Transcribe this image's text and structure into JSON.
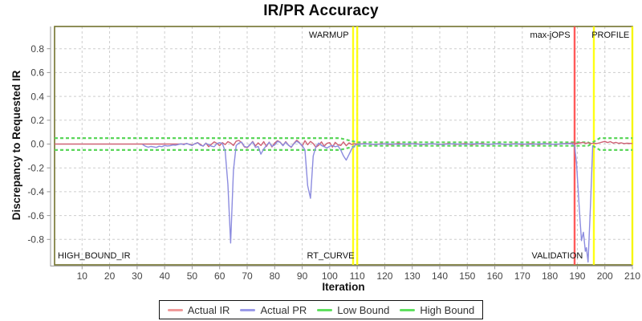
{
  "chart_data": {
    "type": "line",
    "title": "IR/PR Accuracy",
    "xlabel": "Iteration",
    "ylabel": "Discrepancy to Requested IR",
    "x_min": 0,
    "x_max": 210,
    "ylim": [
      -1,
      1
    ],
    "grid": true,
    "legend_position": "bottom",
    "x_ticks": [
      10,
      20,
      30,
      40,
      50,
      60,
      70,
      80,
      90,
      100,
      110,
      120,
      130,
      140,
      150,
      160,
      170,
      180,
      190,
      200,
      210
    ],
    "x_tick_labels": [
      "10",
      "20",
      "30",
      "40",
      "50",
      "60",
      "70",
      "80",
      "90",
      "100",
      "110",
      "120",
      "130",
      "140",
      "150",
      "160",
      "170",
      "180",
      "190",
      "200",
      "210"
    ],
    "y_ticks": [
      0.8,
      0.6,
      0.4,
      0.2,
      0.0,
      -0.2,
      -0.4,
      -0.6,
      -0.8
    ],
    "y_tick_labels": [
      "0.8",
      "0.6",
      "0.4",
      "0.2",
      "0.0",
      "-0.2",
      "-0.4",
      "-0.6",
      "-0.8"
    ],
    "phase_markers": [
      {
        "x": 108.5,
        "color": "#ffff00",
        "phase": "end-of-warmup"
      },
      {
        "x": 110,
        "color": "#ffff00",
        "phase": "start-of-rt-curve"
      },
      {
        "x": 189,
        "color": "#ff4d4d",
        "phase": "max-jOPS"
      },
      {
        "x": 196,
        "color": "#ffff00",
        "phase": "end-of-validation"
      },
      {
        "x": 210,
        "color": "#ffff00",
        "phase": "end-of-profile"
      }
    ],
    "annotations": [
      {
        "text": "WARMUP",
        "x": 107.5,
        "valign": "top",
        "align": "end"
      },
      {
        "text": "max-jOPS",
        "x": 188,
        "valign": "top",
        "align": "end"
      },
      {
        "text": "PROFILE",
        "x": 209.5,
        "valign": "top",
        "align": "end"
      },
      {
        "text": "HIGH_BOUND_IR",
        "x": 0.6,
        "valign": "bottom",
        "align": "start"
      },
      {
        "text": "RT_CURVE",
        "x": 109.5,
        "valign": "bottom",
        "align": "end"
      },
      {
        "text": "VALIDATION",
        "x": 192.6,
        "valign": "bottom",
        "align": "end"
      }
    ],
    "series": [
      {
        "name": "Actual IR",
        "color": "#cf6275",
        "width": 1.4,
        "dash": null,
        "points": [
          [
            0,
            0
          ],
          [
            47,
            0
          ],
          [
            48,
            0.004
          ],
          [
            50,
            -0.008
          ],
          [
            52,
            0.012
          ],
          [
            54,
            -0.018
          ],
          [
            55,
            0.008
          ],
          [
            56,
            -0.022
          ],
          [
            58,
            0.018
          ],
          [
            59,
            0.006
          ],
          [
            60,
            -0.014
          ],
          [
            61,
            0.012
          ],
          [
            62,
            -0.005
          ],
          [
            63,
            0.02
          ],
          [
            64,
            0.008
          ],
          [
            65,
            -0.012
          ],
          [
            66,
            0.024
          ],
          [
            67,
            0.03
          ],
          [
            68,
            0.012
          ],
          [
            69,
            -0.024
          ],
          [
            70,
            -0.03
          ],
          [
            71,
            -0.008
          ],
          [
            72,
            0.022
          ],
          [
            73,
            -0.016
          ],
          [
            74,
            0.01
          ],
          [
            75,
            -0.012
          ],
          [
            76,
            0.02
          ],
          [
            77,
            -0.02
          ],
          [
            78,
            0.016
          ],
          [
            79,
            -0.024
          ],
          [
            80,
            0.008
          ],
          [
            81,
            0.028
          ],
          [
            82,
            0.016
          ],
          [
            83,
            -0.012
          ],
          [
            84,
            0.02
          ],
          [
            85,
            -0.008
          ],
          [
            86,
            -0.028
          ],
          [
            87,
            0.006
          ],
          [
            88,
            0.032
          ],
          [
            89,
            0.012
          ],
          [
            90,
            -0.018
          ],
          [
            91,
            0.028
          ],
          [
            92,
            -0.006
          ],
          [
            93,
            0.022
          ],
          [
            94,
            0.004
          ],
          [
            95,
            -0.026
          ],
          [
            96,
            -0.01
          ],
          [
            97,
            0.018
          ],
          [
            98,
            -0.018
          ],
          [
            99,
            0.006
          ],
          [
            100,
            0.012
          ],
          [
            101,
            -0.026
          ],
          [
            102,
            0.014
          ],
          [
            103,
            -0.006
          ],
          [
            104,
            -0.012
          ],
          [
            105,
            0.018
          ],
          [
            106,
            -0.014
          ],
          [
            107,
            0.01
          ],
          [
            108,
            -0.004
          ],
          [
            109,
            0.004
          ],
          [
            110,
            0.001
          ],
          [
            113,
            0.004
          ],
          [
            116,
            -0.004
          ],
          [
            119,
            0.003
          ],
          [
            122,
            -0.004
          ],
          [
            125,
            0.005
          ],
          [
            128,
            -0.003
          ],
          [
            131,
            0.004
          ],
          [
            134,
            -0.004
          ],
          [
            137,
            0.003
          ],
          [
            140,
            -0.004
          ],
          [
            143,
            0.004
          ],
          [
            146,
            -0.003
          ],
          [
            149,
            0.004
          ],
          [
            152,
            -0.004
          ],
          [
            155,
            0.005
          ],
          [
            158,
            -0.003
          ],
          [
            161,
            0.004
          ],
          [
            164,
            -0.004
          ],
          [
            167,
            0.003
          ],
          [
            170,
            -0.004
          ],
          [
            173,
            0.004
          ],
          [
            176,
            -0.003
          ],
          [
            179,
            0.004
          ],
          [
            182,
            -0.004
          ],
          [
            185,
            0.004
          ],
          [
            187,
            0.006
          ],
          [
            189,
            0.01
          ],
          [
            190,
            0.004
          ],
          [
            191,
            0.01
          ],
          [
            192,
            0.014
          ],
          [
            193,
            0.006
          ],
          [
            194,
            0.01
          ],
          [
            195,
            0.004
          ],
          [
            196,
            0.008
          ],
          [
            197,
            0.004
          ],
          [
            198,
            0.01
          ],
          [
            199,
            0.016
          ],
          [
            200,
            0.022
          ],
          [
            201,
            0.012
          ],
          [
            202,
            0.02
          ],
          [
            203,
            0.008
          ],
          [
            204,
            0.014
          ],
          [
            205,
            0.006
          ],
          [
            206,
            0.01
          ],
          [
            207,
            0.004
          ],
          [
            208,
            0.007
          ],
          [
            210,
            0.005
          ]
        ]
      },
      {
        "name": "Actual PR",
        "color": "#8c8cdf",
        "width": 1.4,
        "dash": null,
        "points": [
          [
            32,
            -0.004
          ],
          [
            33,
            -0.018
          ],
          [
            34,
            -0.026
          ],
          [
            35,
            -0.02
          ],
          [
            36,
            -0.024
          ],
          [
            37,
            -0.028
          ],
          [
            38,
            -0.018
          ],
          [
            39,
            -0.022
          ],
          [
            40,
            -0.012
          ],
          [
            41,
            -0.016
          ],
          [
            42,
            -0.014
          ],
          [
            43,
            -0.008
          ],
          [
            44,
            -0.01
          ],
          [
            45,
            -0.004
          ],
          [
            46,
            0.002
          ],
          [
            47,
            -0.006
          ],
          [
            48,
            0.006
          ],
          [
            49,
            -0.004
          ],
          [
            50,
            -0.012
          ],
          [
            51,
            0.004
          ],
          [
            52,
            0.01
          ],
          [
            53,
            -0.01
          ],
          [
            54,
            -0.016
          ],
          [
            55,
            0.006
          ],
          [
            56,
            -0.004
          ],
          [
            57,
            -0.018
          ],
          [
            58,
            -0.022
          ],
          [
            59,
            0.004
          ],
          [
            60,
            0.012
          ],
          [
            61,
            0.004
          ],
          [
            62,
            -0.06
          ],
          [
            63,
            -0.34
          ],
          [
            64,
            -0.83
          ],
          [
            65,
            -0.22
          ],
          [
            66,
            -0.012
          ],
          [
            67,
            0.008
          ],
          [
            68,
            0.016
          ],
          [
            69,
            -0.02
          ],
          [
            70,
            -0.026
          ],
          [
            71,
            -0.006
          ],
          [
            72,
            0.018
          ],
          [
            73,
            -0.028
          ],
          [
            74,
            -0.02
          ],
          [
            75,
            -0.085
          ],
          [
            76,
            -0.042
          ],
          [
            77,
            -0.012
          ],
          [
            78,
            0.014
          ],
          [
            79,
            -0.018
          ],
          [
            80,
            -0.008
          ],
          [
            81,
            0.022
          ],
          [
            82,
            0.014
          ],
          [
            83,
            -0.014
          ],
          [
            84,
            0.016
          ],
          [
            85,
            -0.01
          ],
          [
            86,
            -0.024
          ],
          [
            87,
            0.002
          ],
          [
            88,
            0.024
          ],
          [
            89,
            0.008
          ],
          [
            90,
            -0.012
          ],
          [
            91,
            -0.05
          ],
          [
            92,
            -0.35
          ],
          [
            93,
            -0.455
          ],
          [
            94,
            -0.1
          ],
          [
            95,
            -0.022
          ],
          [
            96,
            0.008
          ],
          [
            97,
            -0.012
          ],
          [
            98,
            -0.022
          ],
          [
            99,
            -0.034
          ],
          [
            100,
            -0.018
          ],
          [
            101,
            -0.012
          ],
          [
            102,
            -0.022
          ],
          [
            103,
            -0.016
          ],
          [
            104,
            -0.05
          ],
          [
            105,
            -0.1
          ],
          [
            106,
            -0.135
          ],
          [
            107,
            -0.088
          ],
          [
            108,
            -0.04
          ],
          [
            109,
            -0.012
          ],
          [
            110,
            -0.003
          ],
          [
            113,
            0.002
          ],
          [
            117,
            -0.003
          ],
          [
            121,
            0.002
          ],
          [
            125,
            -0.002
          ],
          [
            129,
            0.003
          ],
          [
            133,
            -0.002
          ],
          [
            137,
            0.002
          ],
          [
            141,
            -0.003
          ],
          [
            145,
            0.002
          ],
          [
            149,
            -0.002
          ],
          [
            153,
            0.003
          ],
          [
            157,
            -0.002
          ],
          [
            161,
            0.002
          ],
          [
            165,
            -0.003
          ],
          [
            169,
            0.002
          ],
          [
            173,
            -0.002
          ],
          [
            177,
            0.003
          ],
          [
            181,
            -0.002
          ],
          [
            185,
            0.002
          ],
          [
            188,
            0.004
          ],
          [
            189,
            -0.012
          ],
          [
            189.7,
            -0.16
          ],
          [
            190.9,
            -0.61
          ],
          [
            191.5,
            -0.81
          ],
          [
            192.2,
            -0.74
          ],
          [
            192.9,
            -0.9
          ],
          [
            193.3,
            -0.87
          ],
          [
            193.9,
            -0.99
          ],
          [
            194.9,
            -0.45
          ],
          [
            195.6,
            -0.01
          ]
        ]
      },
      {
        "name": "Low Bound",
        "color": "#5ad65a",
        "width": 2.2,
        "dash": "4,3",
        "points": [
          [
            0,
            -0.05
          ],
          [
            103.5,
            -0.05
          ],
          [
            110,
            -0.015
          ],
          [
            193.8,
            -0.015
          ],
          [
            194.8,
            -0.004
          ],
          [
            198.2,
            -0.05
          ],
          [
            210,
            -0.05
          ]
        ]
      },
      {
        "name": "High Bound",
        "color": "#5ad65a",
        "width": 2.2,
        "dash": "4,3",
        "points": [
          [
            0,
            0.05
          ],
          [
            103.5,
            0.05
          ],
          [
            110,
            0.015
          ],
          [
            193.8,
            0.015
          ],
          [
            194.8,
            0.004
          ],
          [
            198.2,
            0.05
          ],
          [
            210,
            0.05
          ]
        ]
      }
    ]
  },
  "legend": {
    "items": [
      {
        "label": "Actual IR",
        "color": "#f09a9a"
      },
      {
        "label": "Actual PR",
        "color": "#9a9ae8"
      },
      {
        "label": "Low Bound",
        "color": "#5ee05e"
      },
      {
        "label": "High Bound",
        "color": "#5ee05e"
      }
    ]
  }
}
